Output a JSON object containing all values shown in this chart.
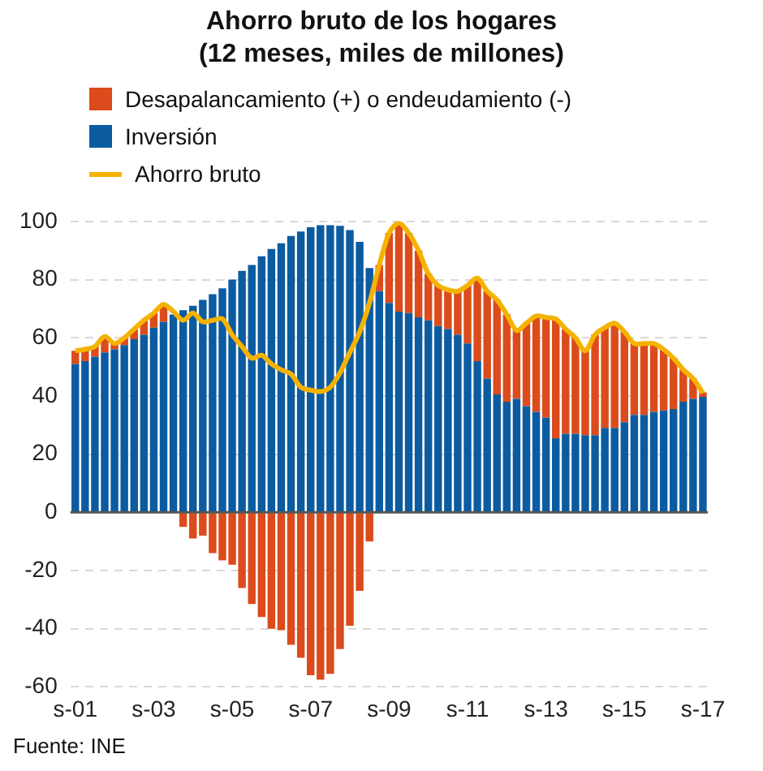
{
  "chart_data": {
    "type": "bar",
    "title": "Ahorro bruto de los hogares\n(12 meses, miles de millones)",
    "categories": [
      "s-01",
      null,
      null,
      null,
      null,
      null,
      null,
      null,
      "s-03",
      null,
      null,
      null,
      null,
      null,
      null,
      null,
      "s-05",
      null,
      null,
      null,
      null,
      null,
      null,
      null,
      "s-07",
      null,
      null,
      null,
      null,
      null,
      null,
      null,
      "s-09",
      null,
      null,
      null,
      null,
      null,
      null,
      null,
      "s-11",
      null,
      null,
      null,
      null,
      null,
      null,
      null,
      "s-13",
      null,
      null,
      null,
      null,
      null,
      null,
      null,
      "s-15",
      null,
      null,
      null,
      null,
      null,
      null,
      null,
      "s-17"
    ],
    "series": [
      {
        "name": "Inversión",
        "color": "#0b5ba1",
        "values": [
          51,
          52,
          53.5,
          55,
          56,
          57.5,
          59.5,
          61,
          63.5,
          65.5,
          68,
          69.5,
          71,
          73,
          75,
          77,
          80,
          83,
          85,
          88,
          90.5,
          92.5,
          95,
          96.5,
          98,
          98.7,
          98.7,
          98.5,
          97,
          93,
          84,
          76,
          72,
          69,
          68.5,
          67,
          66,
          64,
          63,
          61,
          58,
          52,
          46,
          40.5,
          38,
          39,
          36.5,
          34.5,
          32.5,
          25.5,
          27,
          27,
          26.5,
          26.5,
          29,
          29,
          31,
          33.5,
          33.5,
          34.5,
          35,
          35.5,
          38,
          39,
          39.7
        ]
      },
      {
        "name": "Desapalancamiento (+) o endeudamiento (-)",
        "color": "#dc4b1b",
        "values": [
          4.5,
          4,
          3.5,
          5.5,
          2,
          2.5,
          3.5,
          5,
          5,
          6,
          null,
          -5,
          -9,
          -8,
          -14,
          -16.5,
          -18,
          -26,
          -31.5,
          -36,
          -40,
          -40.5,
          -45.5,
          -50,
          -56,
          -57.5,
          -55.5,
          -47,
          -39,
          -27,
          -10,
          9,
          24,
          30.5,
          27.5,
          23,
          16,
          14,
          13.5,
          15,
          20,
          28.5,
          30,
          32.5,
          30,
          23.5,
          28.5,
          33,
          34.5,
          41,
          36,
          33,
          29,
          34.5,
          34.5,
          36,
          31,
          24.5,
          24.5,
          23.5,
          21,
          17.5,
          11,
          7,
          1.5
        ]
      },
      {
        "name": "Ahorro bruto",
        "type": "line",
        "color": "#f6b200",
        "values": [
          55.5,
          56,
          57,
          60.5,
          58,
          60,
          63,
          66,
          68.5,
          71.5,
          69,
          66,
          68.5,
          65.5,
          66,
          66.5,
          61,
          57,
          53,
          54,
          51,
          49,
          47.5,
          43,
          42,
          41.5,
          43,
          48,
          55,
          62,
          72,
          85,
          96,
          99.5,
          96,
          90,
          82,
          78,
          76.5,
          76,
          78,
          80.5,
          76,
          73,
          68,
          62.5,
          65,
          67.5,
          67,
          66.5,
          63,
          60,
          55.5,
          61,
          63.5,
          65,
          62,
          58,
          58,
          58,
          56,
          53,
          49,
          46,
          41
        ]
      }
    ],
    "stacked": true,
    "ylim": [
      -60,
      100
    ],
    "yticks": [
      -60,
      -40,
      -20,
      0,
      20,
      40,
      60,
      80,
      100
    ],
    "grid": "y",
    "legend": "top left",
    "line_style": "solid",
    "ref_lines": [
      {
        "axis": "y",
        "value": 0,
        "color": "#555555"
      }
    ],
    "annotations": [
      "Fuente: INE"
    ]
  }
}
